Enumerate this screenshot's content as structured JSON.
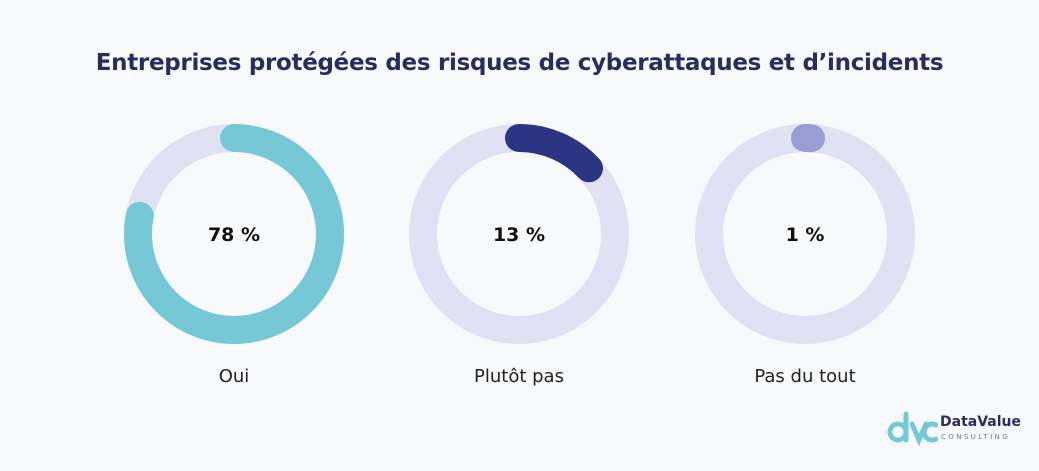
{
  "chart_data": {
    "type": "donut",
    "title": "Entreprises protégées des risques de cyberattaques et d’incidents",
    "unit": "%",
    "series": [
      {
        "label": "Oui",
        "value": 78,
        "value_label": "78 %",
        "color": "#76c8d6"
      },
      {
        "label": "Plutôt pas",
        "value": 13,
        "value_label": "13 %",
        "color": "#2c3582"
      },
      {
        "label": "Pas du tout",
        "value": 1,
        "value_label": "1 %",
        "color": "#9a9dd3"
      }
    ],
    "track_color": "#e0e2f3"
  },
  "logo": {
    "brand": "DataValue",
    "sub": "CONSULTING",
    "mark": "dvc"
  }
}
